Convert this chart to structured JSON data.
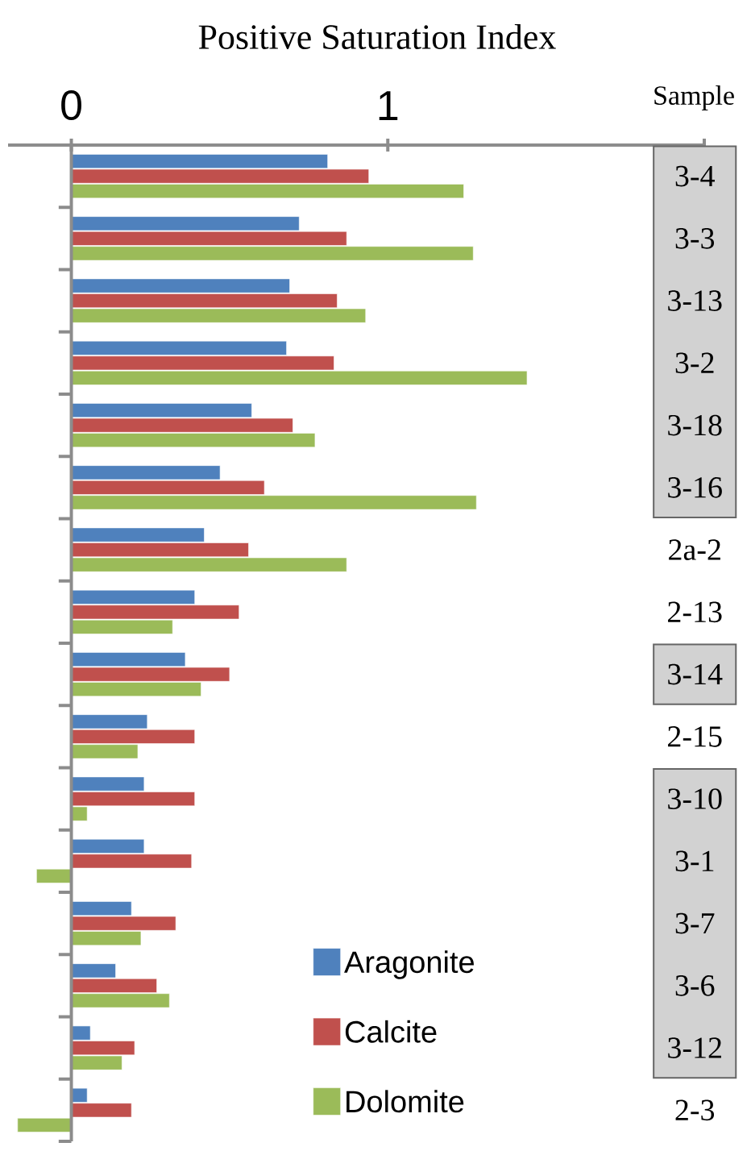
{
  "chart_data": {
    "type": "bar",
    "orientation": "horizontal",
    "xlabel": "Positive Saturation Index",
    "ylabel": "Sample",
    "categories": [
      "3-4",
      "3-3",
      "3-13",
      "3-2",
      "3-18",
      "3-16",
      "2a-2",
      "2-13",
      "3-14",
      "2-15",
      "3-10",
      "3-1",
      "3-7",
      "3-6",
      "3-12",
      "2-3"
    ],
    "series": [
      {
        "name": "Aragonite",
        "color": "#4f81bd",
        "values": [
          0.81,
          0.72,
          0.69,
          0.68,
          0.57,
          0.47,
          0.42,
          0.39,
          0.36,
          0.24,
          0.23,
          0.23,
          0.19,
          0.14,
          0.06,
          0.05
        ]
      },
      {
        "name": "Calcite",
        "color": "#c0504d",
        "values": [
          0.94,
          0.87,
          0.84,
          0.83,
          0.7,
          0.61,
          0.56,
          0.53,
          0.5,
          0.39,
          0.39,
          0.38,
          0.33,
          0.27,
          0.2,
          0.19
        ]
      },
      {
        "name": "Dolomite",
        "color": "#9bbb59",
        "values": [
          1.24,
          1.27,
          0.93,
          1.44,
          0.77,
          1.28,
          0.87,
          0.32,
          0.41,
          0.21,
          0.05,
          -0.11,
          0.22,
          0.31,
          0.16,
          -0.17
        ]
      }
    ],
    "xlim": [
      -0.2,
      2
    ],
    "xticks": [
      0,
      1,
      {
        "value": 2,
        "label": null
      }
    ],
    "ref_lines": [
      {
        "axis": "x",
        "value": 0,
        "color": "#8c8c8c"
      }
    ],
    "legend": "bottom",
    "grid": false
  }
}
